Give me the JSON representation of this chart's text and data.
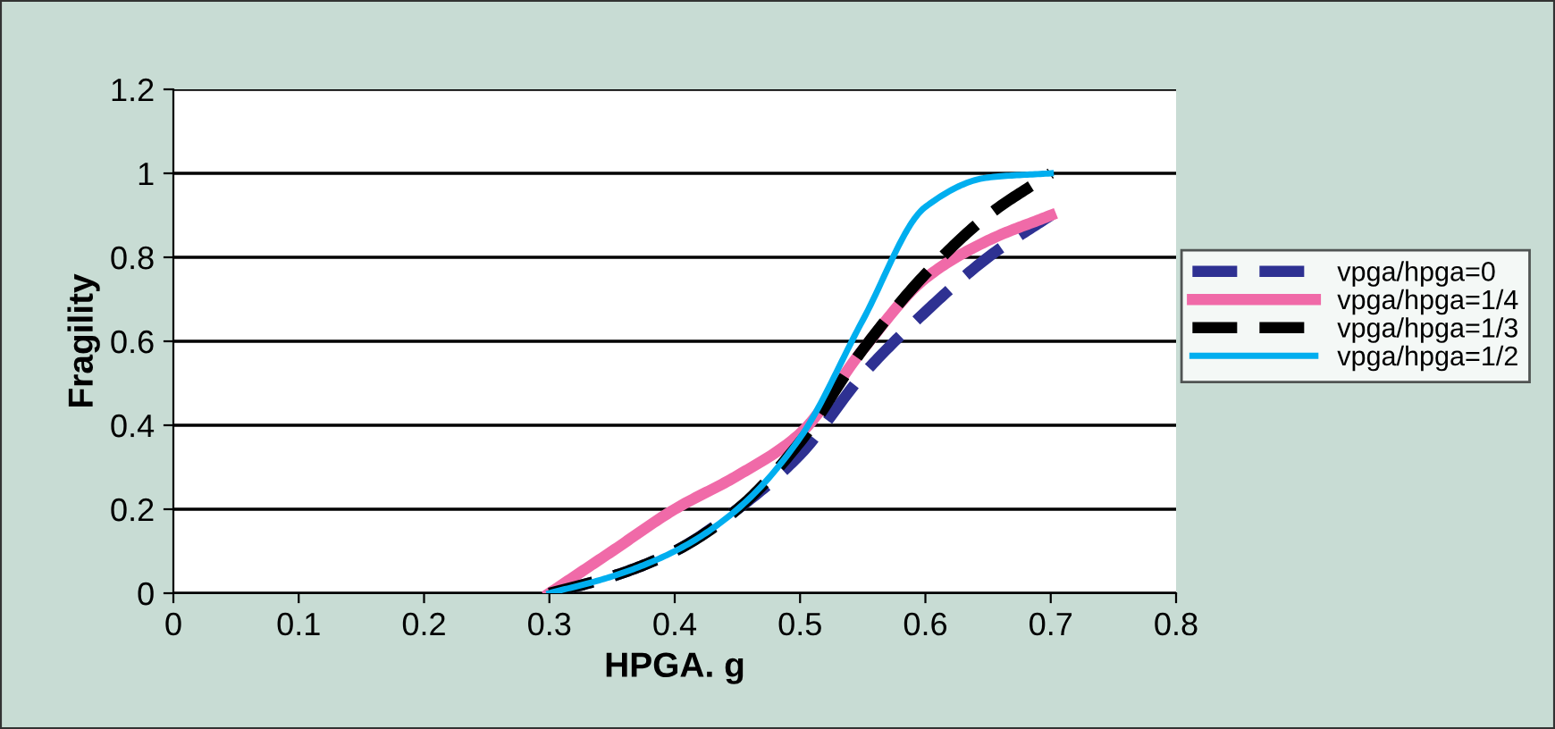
{
  "chart_data": {
    "type": "line",
    "xlabel": "HPGA. g",
    "ylabel": "Fragility",
    "xlim": [
      0,
      0.8
    ],
    "xticks": [
      0,
      0.1,
      0.2,
      0.3,
      0.4,
      0.5,
      0.6,
      0.7,
      0.8
    ],
    "ylim": [
      0,
      1.2
    ],
    "yticks": [
      0,
      0.2,
      0.4,
      0.6,
      0.8,
      1,
      1.2
    ],
    "grid": "y",
    "legend": "right",
    "marker": "none",
    "x": [
      0.3,
      0.35,
      0.4,
      0.45,
      0.5,
      0.55,
      0.6,
      0.65,
      0.7
    ],
    "series": [
      {
        "name": "vpga/hpga=0",
        "color": "#2e3192",
        "line_style": "dashed",
        "values": [
          0,
          0.04,
          0.1,
          0.2,
          0.33,
          0.52,
          0.67,
          0.8,
          0.9
        ]
      },
      {
        "name": "vpga/hpga=1/4",
        "color": "#f06aa8",
        "line_style": "solid",
        "values": [
          0,
          0.1,
          0.2,
          0.28,
          0.38,
          0.58,
          0.75,
          0.84,
          0.9
        ]
      },
      {
        "name": "vpga/hpga=1/3",
        "color": "#000000",
        "line_style": "dashed",
        "values": [
          0,
          0.04,
          0.1,
          0.2,
          0.36,
          0.58,
          0.76,
          0.9,
          1.0
        ]
      },
      {
        "name": "vpga/hpga=1/2",
        "color": "#00aeef",
        "line_style": "solid",
        "values": [
          0,
          0.04,
          0.1,
          0.2,
          0.37,
          0.65,
          0.92,
          0.99,
          1.0
        ]
      }
    ]
  }
}
